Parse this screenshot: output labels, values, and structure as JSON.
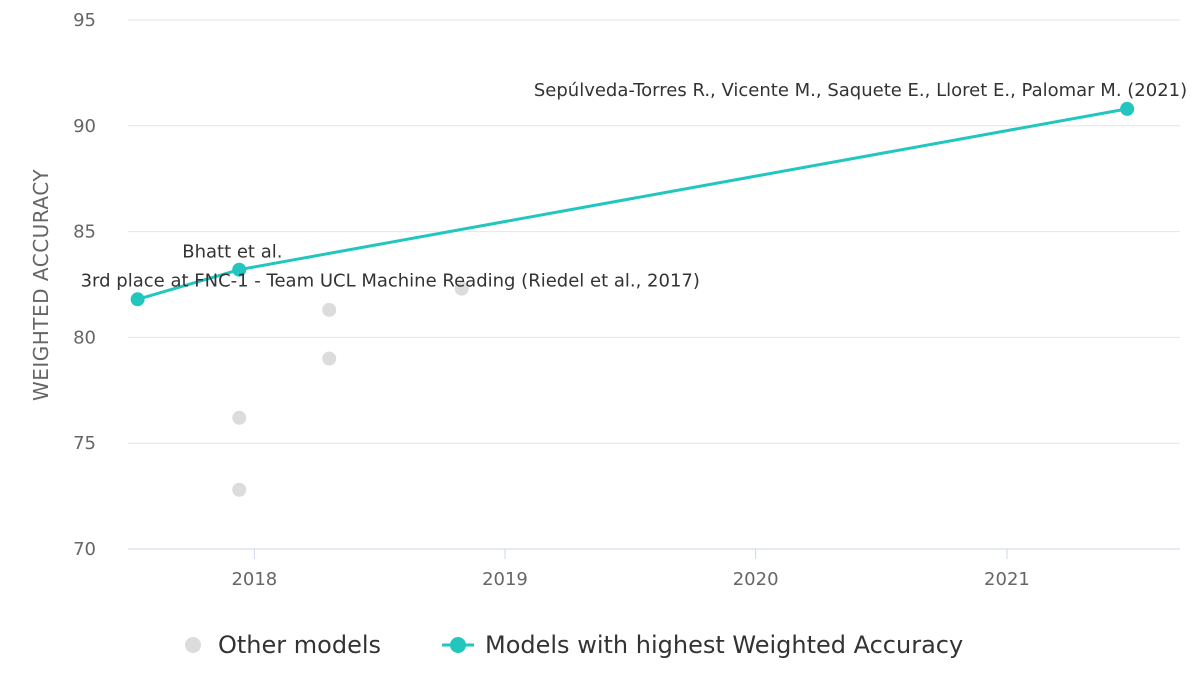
{
  "chart_data": {
    "type": "scatter",
    "ylabel": "WEIGHTED ACCURACY",
    "xlabel": "",
    "x_ticks": [
      "2018",
      "2019",
      "2020",
      "2021"
    ],
    "ylim": [
      70,
      95
    ],
    "y_ticks": [
      70,
      75,
      80,
      85,
      90,
      95
    ],
    "grid": true,
    "legend_position": "bottom",
    "series": [
      {
        "name": "Other models",
        "color": "#dcdcdc",
        "marker": "circle",
        "line": false,
        "points": [
          {
            "x": "2017-12-10",
            "y": 76.2
          },
          {
            "x": "2017-12-10",
            "y": 72.8
          },
          {
            "x": "2018-04-20",
            "y": 81.3
          },
          {
            "x": "2018-04-20",
            "y": 79.0
          },
          {
            "x": "2018-10-30",
            "y": 82.3
          }
        ]
      },
      {
        "name": "Models with highest Weighted Accuracy",
        "color": "#21c6bf",
        "marker": "circle",
        "line": true,
        "points": [
          {
            "x": "2017-07-15",
            "y": 81.8,
            "label": "3rd place at FNC-1 - Team UCL Machine Reading (Riedel et al., 2017)"
          },
          {
            "x": "2017-12-10",
            "y": 83.2,
            "label": "Bhatt et al."
          },
          {
            "x": "2021-06-25",
            "y": 90.8,
            "label": "Sepúlveda-Torres R., Vicente M., Saquete E., Lloret E., Palomar M. (2021)"
          }
        ]
      }
    ]
  }
}
